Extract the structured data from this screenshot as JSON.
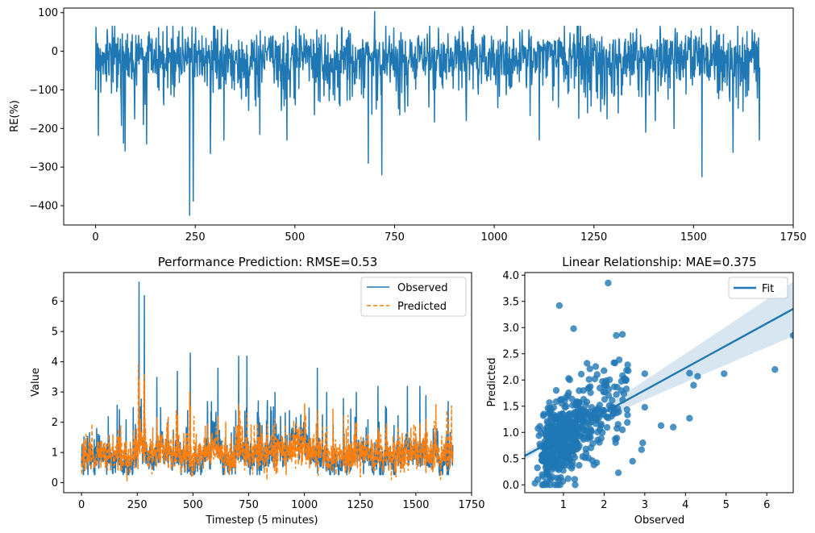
{
  "chart_data": [
    {
      "type": "line",
      "ylabel": "RE(%)",
      "xlim": [
        -80,
        1750
      ],
      "ylim": [
        -450,
        112
      ],
      "xticks": [
        0,
        250,
        500,
        750,
        1000,
        1250,
        1500,
        1750
      ],
      "yticks": [
        100,
        0,
        -100,
        -200,
        -300,
        -400
      ],
      "n_points": 1667,
      "baseline": -10,
      "series": [
        {
          "color": "#1f77b4",
          "spikes": [
            {
              "x": 0,
              "y": -100
            },
            {
              "x": 7,
              "y": -218
            },
            {
              "x": 65,
              "y": -192
            },
            {
              "x": 70,
              "y": -238
            },
            {
              "x": 74,
              "y": -258
            },
            {
              "x": 98,
              "y": -175
            },
            {
              "x": 128,
              "y": -240
            },
            {
              "x": 236,
              "y": -425
            },
            {
              "x": 245,
              "y": -388
            },
            {
              "x": 288,
              "y": -265
            },
            {
              "x": 322,
              "y": -300
            },
            {
              "x": 322,
              "y": -230
            },
            {
              "x": 412,
              "y": -215
            },
            {
              "x": 480,
              "y": -230
            },
            {
              "x": 684,
              "y": -290
            },
            {
              "x": 700,
              "y": 103
            },
            {
              "x": 718,
              "y": -320
            },
            {
              "x": 930,
              "y": -180
            },
            {
              "x": 1113,
              "y": -230
            },
            {
              "x": 1283,
              "y": -175
            },
            {
              "x": 1380,
              "y": -210
            },
            {
              "x": 1404,
              "y": -180
            },
            {
              "x": 1451,
              "y": -200
            },
            {
              "x": 1521,
              "y": -325
            },
            {
              "x": 1599,
              "y": -262
            },
            {
              "x": 1665,
              "y": -230
            }
          ]
        }
      ]
    },
    {
      "type": "line",
      "title": "Performance Prediction: RMSE=0.53",
      "xlabel": "Timestep (5 minutes)",
      "ylabel": "Value",
      "xlim": [
        -80,
        1750
      ],
      "ylim": [
        -0.33,
        6.95
      ],
      "xticks": [
        0,
        250,
        500,
        750,
        1000,
        1250,
        1500,
        1750
      ],
      "yticks": [
        0,
        1,
        2,
        3,
        4,
        5,
        6
      ],
      "n_points": 1667,
      "baseline": 0.9,
      "legend": "top-right",
      "series": [
        {
          "name": "Observed",
          "color": "#1f77b4",
          "style": "solid",
          "spikes": [
            {
              "x": 120,
              "y": 2.2
            },
            {
              "x": 200,
              "y": 2.1
            },
            {
              "x": 232,
              "y": 2.5
            },
            {
              "x": 258,
              "y": 6.65
            },
            {
              "x": 282,
              "y": 6.2
            },
            {
              "x": 338,
              "y": 3.5
            },
            {
              "x": 388,
              "y": 2.1
            },
            {
              "x": 430,
              "y": 3.7
            },
            {
              "x": 476,
              "y": 2.4
            },
            {
              "x": 488,
              "y": 4.3
            },
            {
              "x": 565,
              "y": 2.7
            },
            {
              "x": 612,
              "y": 3.8
            },
            {
              "x": 692,
              "y": 2.4
            },
            {
              "x": 705,
              "y": 4.2
            },
            {
              "x": 742,
              "y": 4.2
            },
            {
              "x": 800,
              "y": 2.0
            },
            {
              "x": 868,
              "y": 3.0
            },
            {
              "x": 933,
              "y": 2.4
            },
            {
              "x": 1058,
              "y": 3.8
            },
            {
              "x": 1100,
              "y": 3.0
            },
            {
              "x": 1175,
              "y": 2.8
            },
            {
              "x": 1233,
              "y": 3.0
            },
            {
              "x": 1285,
              "y": 2.1
            },
            {
              "x": 1330,
              "y": 3.2
            },
            {
              "x": 1462,
              "y": 3.2
            },
            {
              "x": 1518,
              "y": 3.2
            },
            {
              "x": 1545,
              "y": 2.9
            },
            {
              "x": 1645,
              "y": 2.7
            }
          ]
        },
        {
          "name": "Predicted",
          "color": "#ff7f0e",
          "style": "dashed",
          "spikes": [
            {
              "x": 255,
              "y": 3.9
            },
            {
              "x": 280,
              "y": 3.4
            },
            {
              "x": 425,
              "y": 2.4
            },
            {
              "x": 485,
              "y": 3.0
            },
            {
              "x": 710,
              "y": 2.4
            },
            {
              "x": 1060,
              "y": 2.4
            },
            {
              "x": 1590,
              "y": 2.6
            },
            {
              "x": 1660,
              "y": 2.55
            }
          ]
        }
      ]
    },
    {
      "type": "scatter",
      "title": "Linear Relationship: MAE=0.375",
      "xlabel": "Observed",
      "ylabel": "Predicted",
      "xlim": [
        0.05,
        6.65
      ],
      "ylim": [
        -0.15,
        4.05
      ],
      "xticks": [
        1,
        2,
        3,
        4,
        5,
        6
      ],
      "yticks": [
        0.0,
        0.5,
        1.0,
        1.5,
        2.0,
        2.5,
        3.0,
        3.5,
        4.0
      ],
      "legend": "top-right",
      "n_points": 1667,
      "fit": {
        "name": "Fit",
        "intercept": 0.53,
        "slope": 0.425,
        "color": "#1f77b4"
      },
      "series": [
        {
          "color": "#1f77b4",
          "outliers": [
            [
              2.1,
              3.85
            ],
            [
              0.9,
              3.42
            ],
            [
              1.25,
              2.98
            ],
            [
              2.45,
              2.87
            ],
            [
              2.3,
              2.85
            ],
            [
              6.65,
              2.85
            ],
            [
              4.95,
              2.12
            ],
            [
              6.2,
              2.2
            ],
            [
              4.1,
              1.27
            ],
            [
              3.7,
              1.1
            ],
            [
              4.1,
              2.13
            ],
            [
              4.3,
              2.07
            ],
            [
              4.2,
              1.9
            ],
            [
              3.4,
              1.13
            ],
            [
              3.0,
              1.48
            ],
            [
              2.95,
              0.8
            ],
            [
              2.92,
              0.67
            ],
            [
              2.7,
              0.45
            ],
            [
              2.35,
              0.23
            ],
            [
              0.55,
              0.02
            ],
            [
              0.3,
              0.03
            ],
            [
              1.75,
              0.38
            ],
            [
              2.45,
              1.05
            ],
            [
              3.0,
              2.12
            ]
          ]
        }
      ]
    }
  ]
}
